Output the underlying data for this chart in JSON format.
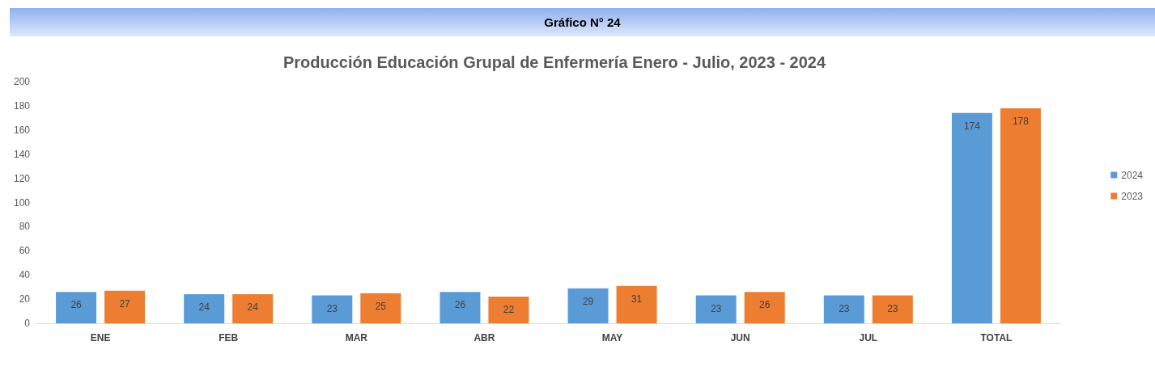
{
  "chart_data": {
    "type": "bar",
    "title": "Gráfico N° 24",
    "subtitle": "Producción Educación Grupal de Enfermería Enero - Julio, 2023 - 2024",
    "categories": [
      "ENE",
      "FEB",
      "MAR",
      "ABR",
      "MAY",
      "JUN",
      "JUL",
      "TOTAL"
    ],
    "series": [
      {
        "name": "2024",
        "color": "#5b9bd5",
        "values": [
          26,
          24,
          23,
          26,
          29,
          23,
          23,
          174
        ]
      },
      {
        "name": "2023",
        "color": "#ed7d31",
        "values": [
          27,
          24,
          25,
          22,
          31,
          26,
          23,
          178
        ]
      }
    ],
    "ylim": [
      0,
      200
    ],
    "yticks": [
      0,
      20,
      40,
      60,
      80,
      100,
      120,
      140,
      160,
      180,
      200
    ],
    "grid": false,
    "legend": "right",
    "data_labels": true
  }
}
